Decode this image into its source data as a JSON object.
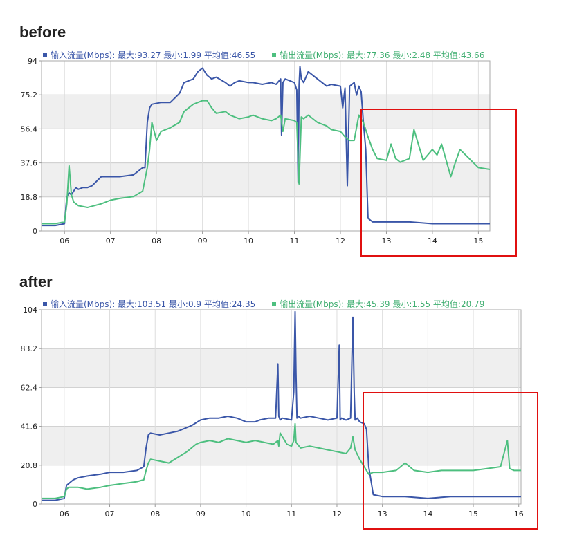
{
  "charts": [
    {
      "title": "before",
      "legend": [
        {
          "text": "输入流量(Mbps): 最大:93.27 最小:1.99 平均值:46.55",
          "color": "#3a56a8"
        },
        {
          "text": "输出流量(Mbps): 最大:77.36 最小:2.48 平均值:43.66",
          "color": "#4dbf7f"
        }
      ]
    },
    {
      "title": "after",
      "legend": [
        {
          "text": "输入流量(Mbps): 最大:103.51 最小:0.9 平均值:24.35",
          "color": "#3a56a8"
        },
        {
          "text": "输出流量(Mbps): 最大:45.39 最小:1.55 平均值:20.79",
          "color": "#4dbf7f"
        }
      ]
    }
  ],
  "chart_data": [
    {
      "type": "line",
      "title": "before",
      "x_unit": "hour",
      "xlim": [
        5.5,
        15.25
      ],
      "ylim": [
        0,
        94
      ],
      "x_ticks": [
        "06",
        "07",
        "08",
        "09",
        "10",
        "11",
        "12",
        "13",
        "14",
        "15"
      ],
      "y_ticks": [
        "0",
        "18.8",
        "37.6",
        "56.4",
        "75.2",
        "94"
      ],
      "grid": true,
      "band_color": "#efefef",
      "series": [
        {
          "name": "输入流量(Mbps)",
          "color": "#3a56a8",
          "x": [
            5.5,
            5.8,
            6.0,
            6.05,
            6.1,
            6.15,
            6.2,
            6.25,
            6.3,
            6.4,
            6.5,
            6.6,
            6.8,
            7.0,
            7.2,
            7.5,
            7.6,
            7.7,
            7.75,
            7.8,
            7.85,
            7.9,
            8.1,
            8.3,
            8.5,
            8.6,
            8.8,
            8.9,
            9.0,
            9.1,
            9.2,
            9.3,
            9.5,
            9.6,
            9.7,
            9.8,
            10.0,
            10.1,
            10.3,
            10.5,
            10.6,
            10.7,
            10.72,
            10.75,
            10.8,
            11.0,
            11.05,
            11.08,
            11.1,
            11.12,
            11.15,
            11.2,
            11.3,
            11.5,
            11.7,
            11.8,
            12.0,
            12.05,
            12.1,
            12.15,
            12.2,
            12.3,
            12.35,
            12.4,
            12.45,
            12.5,
            12.55,
            12.6,
            12.7,
            12.8,
            13.0,
            13.5,
            14.0,
            14.5,
            15.0,
            15.25
          ],
          "y": [
            3,
            3,
            4,
            19,
            21,
            20,
            22,
            24,
            23,
            24,
            24,
            25,
            30,
            30,
            30,
            31,
            33,
            35,
            35,
            60,
            68,
            70,
            71,
            71,
            76,
            82,
            84,
            88,
            90,
            86,
            84,
            85,
            82,
            80,
            82,
            83,
            82,
            82,
            81,
            82,
            81,
            84,
            53,
            82,
            84,
            82,
            78,
            27,
            80,
            91,
            84,
            82,
            88,
            84,
            80,
            81,
            80,
            68,
            79,
            25,
            80,
            82,
            75,
            80,
            77,
            60,
            45,
            7,
            5,
            5,
            5,
            5,
            4,
            4,
            4,
            4
          ]
        },
        {
          "name": "输出流量(Mbps)",
          "color": "#4dbf7f",
          "x": [
            5.5,
            5.8,
            6.0,
            6.05,
            6.1,
            6.15,
            6.2,
            6.3,
            6.5,
            6.8,
            7.0,
            7.2,
            7.5,
            7.7,
            7.8,
            7.85,
            7.9,
            8.0,
            8.1,
            8.3,
            8.5,
            8.6,
            8.8,
            9.0,
            9.1,
            9.2,
            9.3,
            9.5,
            9.6,
            9.8,
            10.0,
            10.1,
            10.3,
            10.5,
            10.6,
            10.7,
            10.75,
            10.8,
            11.0,
            11.05,
            11.1,
            11.15,
            11.2,
            11.3,
            11.5,
            11.7,
            11.8,
            12.0,
            12.1,
            12.2,
            12.3,
            12.4,
            12.5,
            12.6,
            12.7,
            12.8,
            13.0,
            13.1,
            13.2,
            13.3,
            13.5,
            13.6,
            13.8,
            14.0,
            14.1,
            14.2,
            14.4,
            14.5,
            14.6,
            14.8,
            15.0,
            15.25
          ],
          "y": [
            4,
            4,
            5,
            15,
            36,
            20,
            16,
            14,
            13,
            15,
            17,
            18,
            19,
            22,
            35,
            45,
            60,
            50,
            55,
            57,
            60,
            66,
            70,
            72,
            72,
            68,
            65,
            66,
            64,
            62,
            63,
            64,
            62,
            61,
            62,
            64,
            55,
            62,
            61,
            60,
            26,
            63,
            62,
            64,
            60,
            58,
            56,
            55,
            52,
            50,
            50,
            64,
            60,
            52,
            45,
            40,
            39,
            48,
            40,
            38,
            40,
            56,
            39,
            45,
            42,
            48,
            30,
            38,
            45,
            40,
            35,
            34
          ]
        }
      ]
    },
    {
      "type": "line",
      "title": "after",
      "x_unit": "hour",
      "xlim": [
        5.5,
        16.05
      ],
      "ylim": [
        0,
        104
      ],
      "x_ticks": [
        "06",
        "07",
        "08",
        "09",
        "10",
        "11",
        "12",
        "13",
        "14",
        "15",
        "16"
      ],
      "y_ticks": [
        "0",
        "20.8",
        "41.6",
        "62.4",
        "83.2",
        "104"
      ],
      "grid": true,
      "band_color": "#efefef",
      "series": [
        {
          "name": "输入流量(Mbps)",
          "color": "#3a56a8",
          "x": [
            5.5,
            5.8,
            6.0,
            6.05,
            6.1,
            6.2,
            6.3,
            6.5,
            6.8,
            7.0,
            7.3,
            7.6,
            7.75,
            7.8,
            7.85,
            7.9,
            8.1,
            8.3,
            8.5,
            8.7,
            8.8,
            9.0,
            9.2,
            9.4,
            9.6,
            9.8,
            10.0,
            10.2,
            10.3,
            10.5,
            10.65,
            10.7,
            10.72,
            10.75,
            10.8,
            11.0,
            11.05,
            11.08,
            11.1,
            11.12,
            11.15,
            11.2,
            11.4,
            11.6,
            11.8,
            12.0,
            12.05,
            12.07,
            12.1,
            12.2,
            12.3,
            12.35,
            12.38,
            12.4,
            12.45,
            12.5,
            12.6,
            12.65,
            12.7,
            12.8,
            13.0,
            13.5,
            14.0,
            14.5,
            15.0,
            15.5,
            16.05
          ],
          "y": [
            2,
            2,
            3,
            10,
            11,
            13,
            14,
            15,
            16,
            17,
            17,
            18,
            20,
            30,
            37,
            38,
            37,
            38,
            39,
            41,
            42,
            45,
            46,
            46,
            47,
            46,
            44,
            44,
            45,
            46,
            46,
            75,
            47,
            45,
            46,
            45,
            60,
            103,
            70,
            46,
            47,
            46,
            47,
            46,
            45,
            46,
            85,
            45,
            46,
            45,
            46,
            100,
            60,
            45,
            46,
            44,
            43,
            40,
            20,
            5,
            4,
            4,
            3,
            4,
            4,
            4,
            4
          ]
        },
        {
          "name": "输出流量(Mbps)",
          "color": "#4dbf7f",
          "x": [
            5.5,
            5.8,
            6.0,
            6.05,
            6.1,
            6.3,
            6.5,
            6.8,
            7.0,
            7.3,
            7.6,
            7.75,
            7.8,
            7.85,
            7.9,
            8.1,
            8.3,
            8.5,
            8.7,
            8.9,
            9.0,
            9.2,
            9.4,
            9.6,
            9.8,
            10.0,
            10.2,
            10.4,
            10.6,
            10.7,
            10.72,
            10.75,
            10.9,
            11.0,
            11.05,
            11.08,
            11.1,
            11.2,
            11.4,
            11.6,
            11.8,
            12.0,
            12.2,
            12.3,
            12.35,
            12.4,
            12.5,
            12.6,
            12.7,
            12.8,
            13.0,
            13.3,
            13.5,
            13.7,
            14.0,
            14.3,
            14.6,
            15.0,
            15.3,
            15.6,
            15.75,
            15.8,
            15.9,
            16.05
          ],
          "y": [
            3,
            3,
            4,
            8,
            9,
            9,
            8,
            9,
            10,
            11,
            12,
            13,
            18,
            22,
            24,
            23,
            22,
            25,
            28,
            32,
            33,
            34,
            33,
            35,
            34,
            33,
            34,
            33,
            32,
            34,
            31,
            38,
            32,
            31,
            34,
            43,
            33,
            30,
            31,
            30,
            29,
            28,
            27,
            30,
            36,
            29,
            24,
            20,
            16,
            17,
            17,
            18,
            22,
            18,
            17,
            18,
            18,
            18,
            19,
            20,
            34,
            19,
            18,
            18
          ]
        }
      ]
    }
  ]
}
